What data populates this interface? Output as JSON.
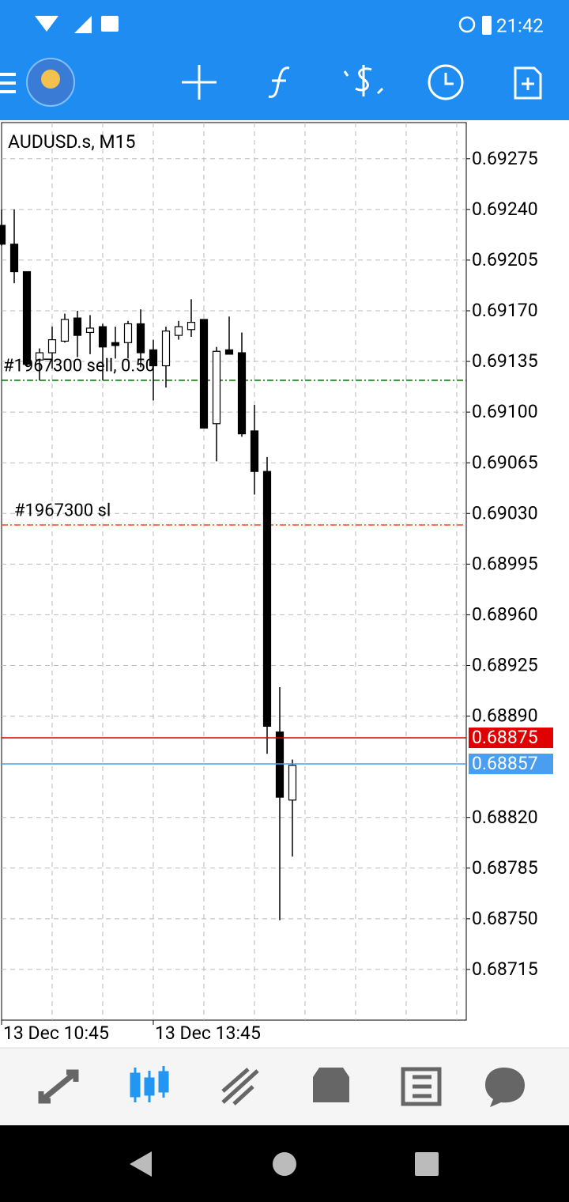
{
  "status_bar": {
    "time": "21:42"
  },
  "chart_data": {
    "type": "candlestick",
    "title": "AUDUSD.s, M15",
    "categories": [
      "13 Dec 10:45",
      null,
      null,
      null,
      null,
      null,
      null,
      null,
      null,
      null,
      null,
      null,
      "13 Dec 13:45",
      null,
      null,
      null,
      null,
      null,
      null,
      null,
      null,
      null,
      null,
      null
    ],
    "open": [
      0.69229,
      0.69216,
      0.69197,
      0.69136,
      0.69141,
      0.69149,
      0.69165,
      0.69155,
      0.69159,
      0.69148,
      0.69148,
      0.69161,
      0.69143,
      0.69132,
      0.69153,
      0.69157,
      0.69164,
      0.69092,
      0.69143,
      0.69141,
      0.69087,
      0.69059,
      0.68879,
      0.68832
    ],
    "high": [
      0.6924,
      0.6924,
      0.69197,
      0.69144,
      0.69159,
      0.69168,
      0.6917,
      0.69167,
      0.69161,
      0.69159,
      0.69163,
      0.69171,
      0.6915,
      0.69159,
      0.69163,
      0.69178,
      0.69164,
      0.69145,
      0.69166,
      0.69155,
      0.69105,
      0.69069,
      0.6891,
      0.6886
    ],
    "low": [
      0.69215,
      0.69189,
      0.69132,
      0.69122,
      0.6913,
      0.69148,
      0.69138,
      0.6914,
      0.69122,
      0.69137,
      0.69137,
      0.69131,
      0.69108,
      0.69117,
      0.6915,
      0.69152,
      0.69089,
      0.69066,
      0.6914,
      0.69083,
      0.69043,
      0.68864,
      0.68749,
      0.68793
    ],
    "close": [
      0.69216,
      0.69197,
      0.69133,
      0.69141,
      0.6915,
      0.69164,
      0.69153,
      0.69158,
      0.69145,
      0.69146,
      0.69161,
      0.69141,
      0.69132,
      0.69156,
      0.69159,
      0.69162,
      0.69089,
      0.69142,
      0.6914,
      0.69085,
      0.69059,
      0.68883,
      0.68834,
      0.68856
    ],
    "up_color": "#ffffff",
    "down_color": "#000000",
    "ylim": [
      0.6868,
      0.693
    ],
    "yticks": [
      0.69275,
      {
        "value": 0.6924,
        "label": "0.69240"
      },
      0.69205,
      {
        "value": 0.6917,
        "label": "0.69170"
      },
      0.69135,
      {
        "value": 0.691,
        "label": "0.69100"
      },
      0.69065,
      {
        "value": 0.6903,
        "label": "0.69030"
      },
      0.68995,
      {
        "value": 0.6896,
        "label": "0.68960"
      },
      0.68925,
      {
        "value": 0.6889,
        "label": "0.68890"
      },
      {
        "value": 0.6882,
        "label": "0.68820"
      },
      0.68785,
      {
        "value": 0.6875,
        "label": "0.68750"
      },
      0.68715
    ],
    "grid": true,
    "order_lines": [
      {
        "label": "#1967300 sell, 0.50",
        "value": 0.69122,
        "color": "#006400"
      },
      {
        "label": "#1967300 sl",
        "value": 0.69022,
        "color": "#ff4500"
      }
    ],
    "price_lines": [
      {
        "value": 0.68875,
        "color": "#e00000"
      },
      {
        "value": 0.68857,
        "color": "#4a9ef0"
      }
    ]
  }
}
